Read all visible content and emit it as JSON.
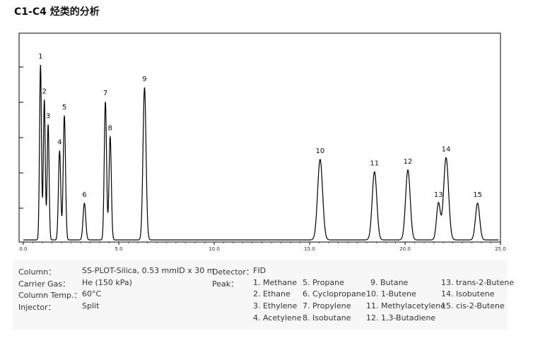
{
  "title": "C1-C4 烃类的分析",
  "chart_data": {
    "type": "line",
    "title": "C1-C4 烃类的分析",
    "xlabel": "",
    "ylabel": "",
    "xlim": [
      0,
      25
    ],
    "ylim": [
      0,
      1
    ],
    "x_ticks": [
      0,
      5,
      10,
      15,
      20,
      25
    ],
    "x_tick_labels": [
      "0.0",
      "5.0",
      "10.0",
      "15.0",
      "20.0",
      "25.0"
    ],
    "grid": false,
    "peaks": [
      {
        "id": "1",
        "rt": 0.9,
        "height": 1.0,
        "width": 0.05
      },
      {
        "id": "2",
        "rt": 1.1,
        "height": 0.8,
        "width": 0.05
      },
      {
        "id": "3",
        "rt": 1.3,
        "height": 0.66,
        "width": 0.05
      },
      {
        "id": "4",
        "rt": 1.9,
        "height": 0.51,
        "width": 0.06
      },
      {
        "id": "5",
        "rt": 2.15,
        "height": 0.71,
        "width": 0.06
      },
      {
        "id": "6",
        "rt": 3.2,
        "height": 0.21,
        "width": 0.07
      },
      {
        "id": "7",
        "rt": 4.3,
        "height": 0.79,
        "width": 0.06
      },
      {
        "id": "8",
        "rt": 4.55,
        "height": 0.59,
        "width": 0.06
      },
      {
        "id": "9",
        "rt": 6.35,
        "height": 0.87,
        "width": 0.08
      },
      {
        "id": "10",
        "rt": 15.55,
        "height": 0.46,
        "width": 0.13
      },
      {
        "id": "11",
        "rt": 18.4,
        "height": 0.39,
        "width": 0.12
      },
      {
        "id": "12",
        "rt": 20.15,
        "height": 0.4,
        "width": 0.12
      },
      {
        "id": "13",
        "rt": 21.75,
        "height": 0.21,
        "width": 0.1
      },
      {
        "id": "14",
        "rt": 22.15,
        "height": 0.47,
        "width": 0.13
      },
      {
        "id": "15",
        "rt": 23.8,
        "height": 0.21,
        "width": 0.11
      }
    ]
  },
  "conditions": [
    {
      "label": "Column：",
      "value": "SS-PLOT-Silica, 0.53 mmID x 30 m"
    },
    {
      "label": "Carrier Gas：",
      "value": "He (150 kPa)"
    },
    {
      "label": "Column Temp.：",
      "value": "60°C"
    },
    {
      "label": "Injector：",
      "value": "Split"
    }
  ],
  "detector": {
    "label": "Detector：",
    "value": "FID"
  },
  "peak_label": "Peak：",
  "peak_names": [
    "1. Methane",
    "2. Ethane",
    "3. Ethylene",
    "4. Acetylene",
    "5. Propane",
    "6. Cyclopropane",
    "7. Propylene",
    "8. Isobutane",
    "9. Butane",
    "10. 1-Butene",
    "11. Methylacetylene",
    "12. 1,3-Butadiene",
    "13. trans-2-Butene",
    "14. Isobutene",
    "15. cis-2-Butene"
  ]
}
